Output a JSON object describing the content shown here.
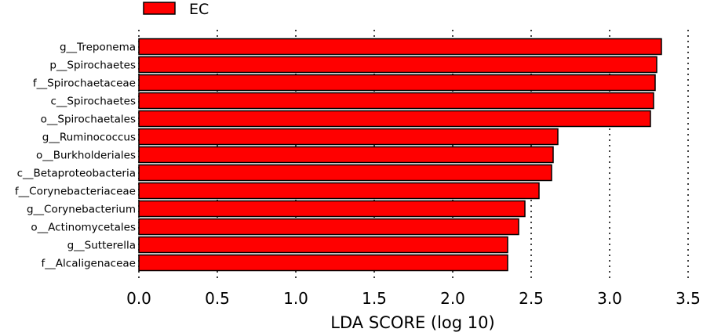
{
  "chart_data": {
    "type": "bar",
    "orientation": "horizontal",
    "categories": [
      "g__Treponema",
      "p__Spirochaetes",
      "f__Spirochaetaceae",
      "c__Spirochaetes",
      "o__Spirochaetales",
      "g__Ruminococcus",
      "o__Burkholderiales",
      "c__Betaproteobacteria",
      "f__Corynebacteriaceae",
      "g__Corynebacterium",
      "o__Actinomycetales",
      "g__Sutterella",
      "f__Alcaligenaceae"
    ],
    "series": [
      {
        "name": "EC",
        "color": "#ff0000",
        "values": [
          3.33,
          3.3,
          3.29,
          3.28,
          3.26,
          2.67,
          2.64,
          2.63,
          2.55,
          2.46,
          2.42,
          2.35,
          2.35
        ]
      }
    ],
    "xlabel": "LDA SCORE (log 10)",
    "xlim": [
      0,
      3.5
    ],
    "xticks": [
      "0.0",
      "0.5",
      "1.0",
      "1.5",
      "2.0",
      "2.5",
      "3.0",
      "3.5"
    ],
    "grid": "vertical dotted",
    "legend": "top-left"
  }
}
